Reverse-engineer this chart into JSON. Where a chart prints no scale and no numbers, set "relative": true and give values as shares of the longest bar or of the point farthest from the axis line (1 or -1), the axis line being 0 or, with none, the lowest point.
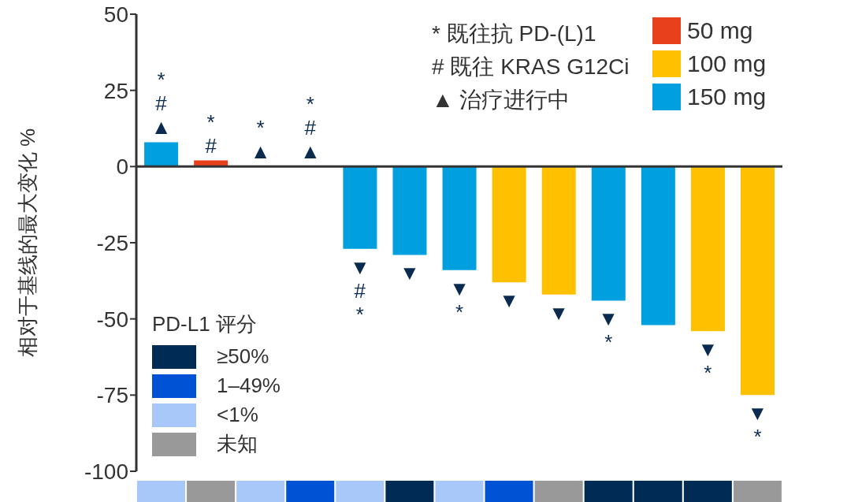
{
  "chart_data": [
    {
      "type": "bar",
      "ylabel": "相对于基线的最大变化 %",
      "categories": [
        null,
        null,
        null,
        null,
        null,
        null,
        null,
        null,
        null,
        null,
        null,
        null,
        null
      ],
      "stacked": true,
      "series": [
        {
          "name": "50 mg",
          "color": "#e8401c",
          "values": [
            null,
            2,
            null,
            null,
            null,
            null,
            null,
            null,
            null,
            null,
            null,
            null,
            null
          ]
        },
        {
          "name": "100 mg",
          "color": "#ffc000",
          "values": [
            null,
            null,
            null,
            null,
            null,
            null,
            null,
            -38,
            -42,
            null,
            null,
            -54,
            -75
          ]
        },
        {
          "name": "150 mg",
          "color": "#00a0e0",
          "values": [
            8,
            null,
            null,
            null,
            -27,
            -29,
            -34,
            null,
            null,
            -44,
            -52,
            null,
            null
          ]
        }
      ],
      "value_labels": [
        "*\n#\n▲",
        "*\n#",
        "*\n▲",
        "*\n#\n▲",
        "▼\n#\n*",
        "▼",
        "▼\n*",
        "▼",
        "▼",
        "▼\n*",
        null,
        "▼\n*",
        "▼\n*"
      ],
      "ylim": [
        -100,
        50
      ],
      "yticks": [
        -100,
        -75,
        -50,
        -25,
        0,
        25,
        50
      ],
      "tick_labels": "y",
      "legend": "top right",
      "annotations": [
        "* 既往抗 PD-(L)1",
        "# 既往 KRAS G12Ci",
        "▲ 治疗进行中"
      ]
    },
    {
      "type": "bar",
      "relative": true,
      "stacked": true,
      "tick_labels": false,
      "legend_title": "PD-L1 评分",
      "legend": "top left",
      "categories": [
        null,
        null,
        null,
        null,
        null,
        null,
        null,
        null,
        null,
        null,
        null,
        null,
        null
      ],
      "series": [
        {
          "name": "≥50%",
          "color": "#002b55",
          "values": [
            null,
            null,
            null,
            null,
            null,
            1,
            null,
            null,
            null,
            1,
            1,
            1,
            null
          ]
        },
        {
          "name": "1–49%",
          "color": "#0052d4",
          "values": [
            null,
            null,
            null,
            1,
            null,
            null,
            null,
            1,
            null,
            null,
            null,
            null,
            null
          ]
        },
        {
          "name": "<1%",
          "color": "#a9c8fa",
          "values": [
            1,
            null,
            1,
            null,
            1,
            null,
            1,
            null,
            null,
            null,
            null,
            null,
            null
          ]
        },
        {
          "name": "未知",
          "color": "#999999",
          "values": [
            null,
            1,
            null,
            null,
            null,
            null,
            null,
            null,
            1,
            null,
            null,
            null,
            1
          ]
        }
      ]
    }
  ]
}
